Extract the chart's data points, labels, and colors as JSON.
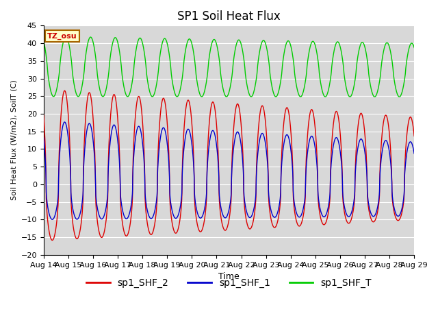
{
  "title": "SP1 Soil Heat Flux",
  "xlabel": "Time",
  "ylabel": "Soil Heat Flux (W/m2), SoilT (C)",
  "ylim": [
    -20,
    45
  ],
  "xlim": [
    0,
    15
  ],
  "x_tick_labels": [
    "Aug 14",
    "Aug 15",
    "Aug 16",
    "Aug 17",
    "Aug 18",
    "Aug 19",
    "Aug 20",
    "Aug 21",
    "Aug 22",
    "Aug 23",
    "Aug 24",
    "Aug 25",
    "Aug 26",
    "Aug 27",
    "Aug 28",
    "Aug 29"
  ],
  "tz_label": "TZ_osu",
  "series": {
    "sp1_SHF_2": {
      "color": "#dd0000",
      "label": "sp1_SHF_2"
    },
    "sp1_SHF_1": {
      "color": "#0000cc",
      "label": "sp1_SHF_1"
    },
    "sp1_SHF_T": {
      "color": "#00cc00",
      "label": "sp1_SHF_T"
    }
  },
  "plot_bg_color": "#d8d8d8",
  "grid_color": "#ffffff",
  "title_fontsize": 12,
  "tick_fontsize": 8,
  "legend_fontsize": 10
}
